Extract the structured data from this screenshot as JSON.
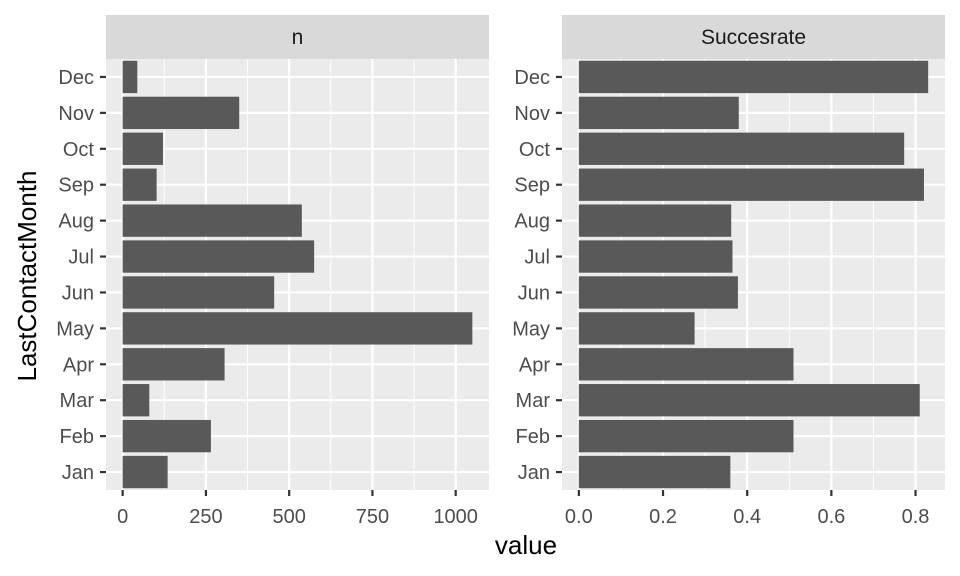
{
  "chart_data": {
    "type": "bar",
    "orientation": "horizontal",
    "xlabel": "value",
    "ylabel": "LastContactMonth",
    "grid": true,
    "categories": [
      "Jan",
      "Feb",
      "Mar",
      "Apr",
      "May",
      "Jun",
      "Jul",
      "Aug",
      "Sep",
      "Oct",
      "Nov",
      "Dec"
    ],
    "panels": [
      {
        "strip": "n",
        "values": [
          135,
          265,
          80,
          306,
          1050,
          455,
          575,
          538,
          102,
          121,
          350,
          44
        ],
        "xlim": [
          -50,
          1100
        ],
        "ticks": [
          0,
          250,
          500,
          750,
          1000
        ],
        "tick_labels": [
          "0",
          "250",
          "500",
          "750",
          "1000"
        ]
      },
      {
        "strip": "Succesrate",
        "values": [
          0.36,
          0.51,
          0.81,
          0.51,
          0.275,
          0.378,
          0.365,
          0.362,
          0.82,
          0.773,
          0.38,
          0.83
        ],
        "xlim": [
          -0.04,
          0.87
        ],
        "ticks": [
          0.0,
          0.2,
          0.4,
          0.6,
          0.8
        ],
        "tick_labels": [
          "0.0",
          "0.2",
          "0.4",
          "0.6",
          "0.8"
        ]
      }
    ],
    "colors": {
      "bar": "#595959",
      "panel_bg": "#ebebeb",
      "strip_bg": "#d9d9d9",
      "grid": "#ffffff",
      "tick_text": "#4d4d4d",
      "tick_mark": "#333333"
    }
  }
}
